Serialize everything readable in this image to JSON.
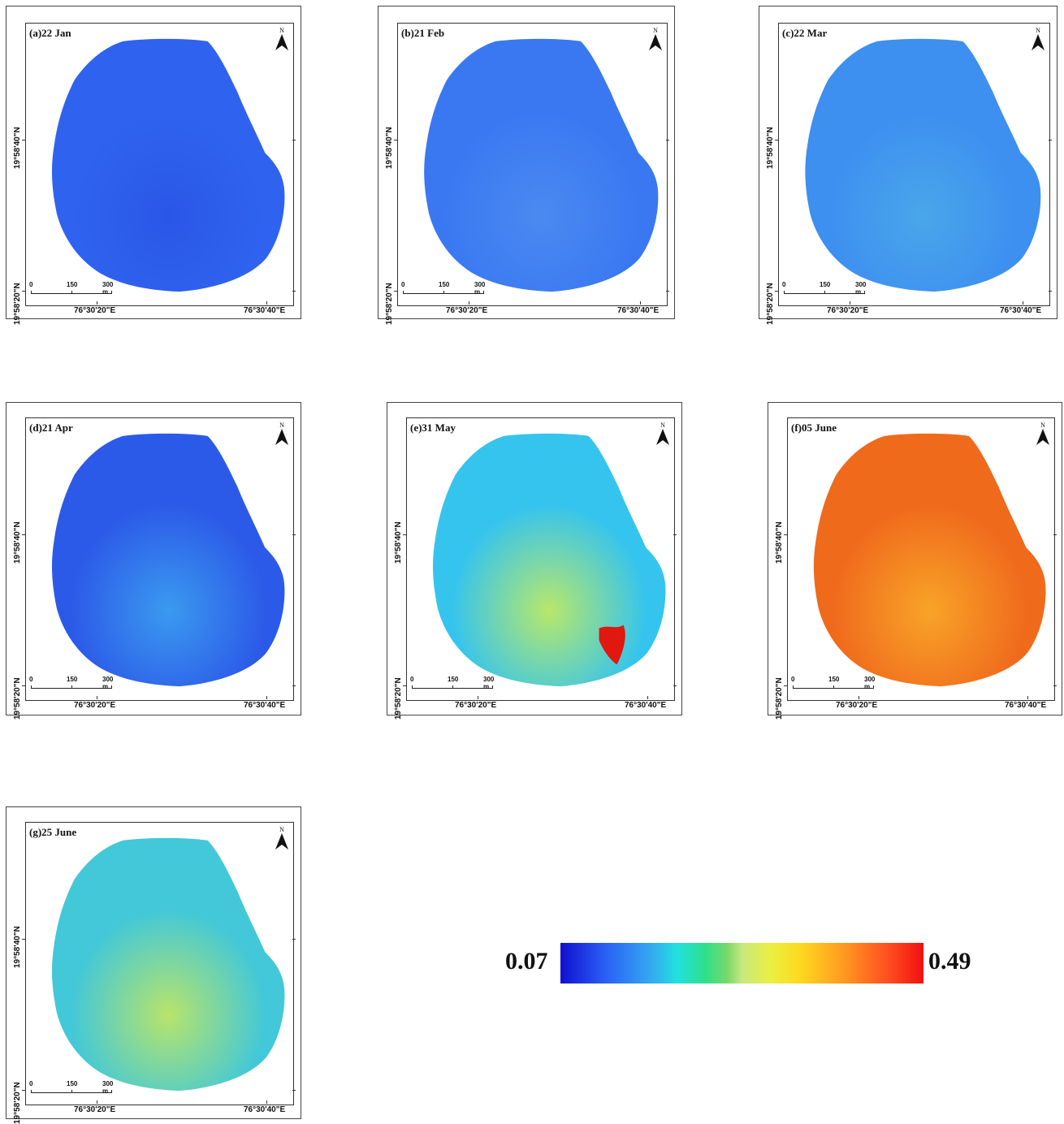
{
  "panels": [
    {
      "id": "a",
      "title": "(a)22 Jan",
      "fill": "#2f63ef",
      "accent": "#2a56e6"
    },
    {
      "id": "b",
      "title": "(b)21 Feb",
      "fill": "#3a78f2",
      "accent": "#4a8af0"
    },
    {
      "id": "c",
      "title": "(c)22 Mar",
      "fill": "#3d8ff0",
      "accent": "#4aa6ea"
    },
    {
      "id": "d",
      "title": "(d)21 Apr",
      "fill": "#2c5ae8",
      "accent": "#3a9af0"
    },
    {
      "id": "e",
      "title": "(e)31 May",
      "fill": "#35c4ee",
      "accent": "#b8e86a",
      "hotspot": "#e01810"
    },
    {
      "id": "f",
      "title": "(f)05 June",
      "fill": "#f06a1c",
      "accent": "#f8a428"
    },
    {
      "id": "g",
      "title": "(g)25 June",
      "fill": "#42c8d8",
      "accent": "#b8e46a"
    }
  ],
  "north_label": "N",
  "lat_labels": [
    "19°58'40\"N",
    "19°58'20\"N"
  ],
  "lon_labels": [
    "76°30'20\"E",
    "76°30'40\"E"
  ],
  "scale_labels": [
    "0",
    "150",
    "300 m"
  ],
  "colorbar": {
    "min_label": "0.07",
    "max_label": "0.49",
    "min": 0.07,
    "max": 0.49,
    "colors": [
      "#1010d0",
      "#35a9f0",
      "#2ee08a",
      "#eaf040",
      "#ff9a20",
      "#f01010"
    ]
  }
}
